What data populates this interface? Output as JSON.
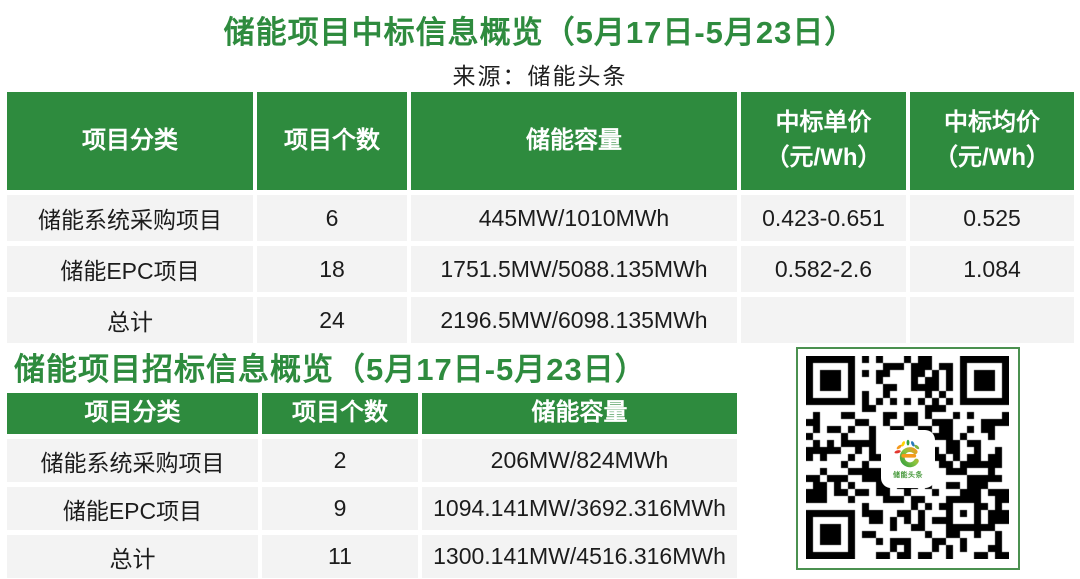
{
  "colors": {
    "accent_green": "#2e8b3e",
    "header_text": "#ffffff",
    "row_background": "#f3f3f3",
    "body_text": "#1c1c1c",
    "qr_border_green": "#4b9150"
  },
  "bid_table": {
    "title": "储能项目中标信息概览（5月17日-5月23日）",
    "source": "来源：储能头条",
    "headers": {
      "category": "项目分类",
      "count": "项目个数",
      "capacity": "储能容量",
      "unit_price_line1": "中标单价",
      "unit_price_line2": "（元/Wh）",
      "avg_price_line1": "中标均价",
      "avg_price_line2": "（元/Wh）"
    },
    "rows": [
      {
        "category": "储能系统采购项目",
        "count": "6",
        "capacity": "445MW/1010MWh",
        "unit_price": "0.423-0.651",
        "avg_price": "0.525"
      },
      {
        "category": "储能EPC项目",
        "count": "18",
        "capacity": "1751.5MW/5088.135MWh",
        "unit_price": "0.582-2.6",
        "avg_price": "1.084"
      },
      {
        "category": "总计",
        "count": "24",
        "capacity": "2196.5MW/6098.135MWh",
        "unit_price": "",
        "avg_price": ""
      }
    ]
  },
  "tender_table": {
    "title": "储能项目招标信息概览（5月17日-5月23日）",
    "headers": {
      "category": "项目分类",
      "count": "项目个数",
      "capacity": "储能容量"
    },
    "rows": [
      {
        "category": "储能系统采购项目",
        "count": "2",
        "capacity": "206MW/824MWh"
      },
      {
        "category": "储能EPC项目",
        "count": "9",
        "capacity": "1094.141MW/3692.316MWh"
      },
      {
        "category": "总计",
        "count": "11",
        "capacity": "1300.141MW/4516.316MWh"
      }
    ]
  },
  "qr": {
    "logo_text": "储能头条"
  },
  "chart_data": [
    {
      "type": "table",
      "title": "储能项目中标信息概览（5月17日-5月23日）",
      "source": "来源：储能头条",
      "columns": [
        "项目分类",
        "项目个数",
        "储能容量",
        "中标单价（元/Wh）",
        "中标均价（元/Wh）"
      ],
      "rows": [
        [
          "储能系统采购项目",
          "6",
          "445MW/1010MWh",
          "0.423-0.651",
          "0.525"
        ],
        [
          "储能EPC项目",
          "18",
          "1751.5MW/5088.135MWh",
          "0.582-2.6",
          "1.084"
        ],
        [
          "总计",
          "24",
          "2196.5MW/6098.135MWh",
          "",
          ""
        ]
      ]
    },
    {
      "type": "table",
      "title": "储能项目招标信息概览（5月17日-5月23日）",
      "columns": [
        "项目分类",
        "项目个数",
        "储能容量"
      ],
      "rows": [
        [
          "储能系统采购项目",
          "2",
          "206MW/824MWh"
        ],
        [
          "储能EPC项目",
          "9",
          "1094.141MW/3692.316MWh"
        ],
        [
          "总计",
          "11",
          "1300.141MW/4516.316MWh"
        ]
      ]
    }
  ]
}
